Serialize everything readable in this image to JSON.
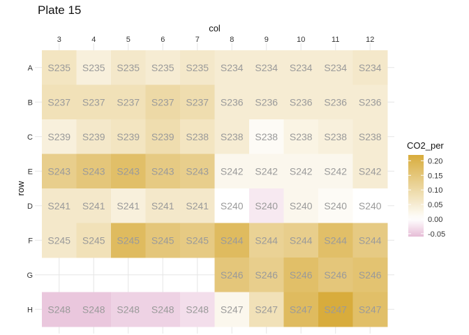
{
  "chart_data": {
    "type": "heatmap",
    "title": "Plate 15",
    "xlabel": "col",
    "ylabel": "row",
    "x_position": "top",
    "columns": [
      "3",
      "4",
      "5",
      "6",
      "7",
      "8",
      "9",
      "10",
      "11",
      "12"
    ],
    "rows": [
      "A",
      "B",
      "C",
      "E",
      "D",
      "F",
      "G",
      "H"
    ],
    "cells": [
      [
        {
          "label": "S235",
          "value": 0.07
        },
        {
          "label": "S235",
          "value": 0.04
        },
        {
          "label": "S235",
          "value": 0.06
        },
        {
          "label": "S235",
          "value": 0.05
        },
        {
          "label": "S235",
          "value": 0.06
        },
        {
          "label": "S234",
          "value": 0.05
        },
        {
          "label": "S234",
          "value": 0.05
        },
        {
          "label": "S234",
          "value": 0.05
        },
        {
          "label": "S234",
          "value": 0.05
        },
        {
          "label": "S234",
          "value": 0.06
        }
      ],
      [
        {
          "label": "S237",
          "value": 0.08
        },
        {
          "label": "S237",
          "value": 0.08
        },
        {
          "label": "S237",
          "value": 0.08
        },
        {
          "label": "S237",
          "value": 0.1
        },
        {
          "label": "S237",
          "value": 0.09
        },
        {
          "label": "S236",
          "value": 0.05
        },
        {
          "label": "S236",
          "value": 0.05
        },
        {
          "label": "S236",
          "value": 0.05
        },
        {
          "label": "S236",
          "value": 0.05
        },
        {
          "label": "S236",
          "value": 0.05
        }
      ],
      [
        {
          "label": "S239",
          "value": 0.04
        },
        {
          "label": "S239",
          "value": 0.06
        },
        {
          "label": "S239",
          "value": 0.07
        },
        {
          "label": "S239",
          "value": 0.09
        },
        {
          "label": "S238",
          "value": 0.07
        },
        {
          "label": "S238",
          "value": 0.05
        },
        {
          "label": "S238",
          "value": 0.01
        },
        {
          "label": "S238",
          "value": 0.03
        },
        {
          "label": "S238",
          "value": 0.04
        },
        {
          "label": "S238",
          "value": 0.05
        }
      ],
      [
        {
          "label": "S243",
          "value": 0.13
        },
        {
          "label": "S243",
          "value": 0.15
        },
        {
          "label": "S243",
          "value": 0.17
        },
        {
          "label": "S243",
          "value": 0.14
        },
        {
          "label": "S243",
          "value": 0.13
        },
        {
          "label": "S242",
          "value": 0.02
        },
        {
          "label": "S242",
          "value": 0.02
        },
        {
          "label": "S242",
          "value": 0.02
        },
        {
          "label": "S242",
          "value": 0.02
        },
        {
          "label": "S242",
          "value": 0.05
        }
      ],
      [
        {
          "label": "S241",
          "value": 0.06
        },
        {
          "label": "S241",
          "value": 0.06
        },
        {
          "label": "S241",
          "value": 0.04
        },
        {
          "label": "S241",
          "value": 0.06
        },
        {
          "label": "S241",
          "value": 0.06
        },
        {
          "label": "S240",
          "value": 0.0
        },
        {
          "label": "S240",
          "value": -0.02
        },
        {
          "label": "S240",
          "value": 0.02
        },
        {
          "label": "S240",
          "value": 0.01
        },
        {
          "label": "S240",
          "value": 0.0
        }
      ],
      [
        {
          "label": "S245",
          "value": 0.06
        },
        {
          "label": "S245",
          "value": 0.08
        },
        {
          "label": "S245",
          "value": 0.18
        },
        {
          "label": "S245",
          "value": 0.15
        },
        {
          "label": "S245",
          "value": 0.14
        },
        {
          "label": "S244",
          "value": 0.18
        },
        {
          "label": "S244",
          "value": 0.12
        },
        {
          "label": "S244",
          "value": 0.13
        },
        {
          "label": "S244",
          "value": 0.17
        },
        {
          "label": "S244",
          "value": 0.14
        }
      ],
      [
        null,
        null,
        null,
        null,
        null,
        {
          "label": "S246",
          "value": 0.15
        },
        {
          "label": "S246",
          "value": 0.13
        },
        {
          "label": "S246",
          "value": 0.17
        },
        {
          "label": "S246",
          "value": 0.15
        },
        {
          "label": "S246",
          "value": 0.16
        }
      ],
      [
        {
          "label": "S248",
          "value": -0.05
        },
        {
          "label": "S248",
          "value": -0.05
        },
        {
          "label": "S248",
          "value": -0.04
        },
        {
          "label": "S248",
          "value": -0.04
        },
        {
          "label": "S248",
          "value": -0.03
        },
        {
          "label": "S247",
          "value": 0.02
        },
        {
          "label": "S247",
          "value": 0.08
        },
        {
          "label": "S247",
          "value": 0.18
        },
        {
          "label": "S247",
          "value": 0.22
        },
        {
          "label": "S247",
          "value": 0.17
        }
      ]
    ],
    "legend": {
      "title": "CO2_per",
      "position": "right",
      "ticks": [
        "0.20",
        "0.15",
        "0.10",
        "0.05",
        "0.00",
        "-0.05"
      ],
      "tick_values": [
        0.2,
        0.15,
        0.1,
        0.05,
        0.0,
        -0.05
      ],
      "range": [
        -0.06,
        0.22
      ]
    },
    "colors": {
      "low": "#e6bcd6",
      "mid": "#ffffff",
      "high": "#d8ac3c",
      "label_text": "#9a9a9a",
      "grid": "#e6e6e6"
    },
    "grid": true
  }
}
